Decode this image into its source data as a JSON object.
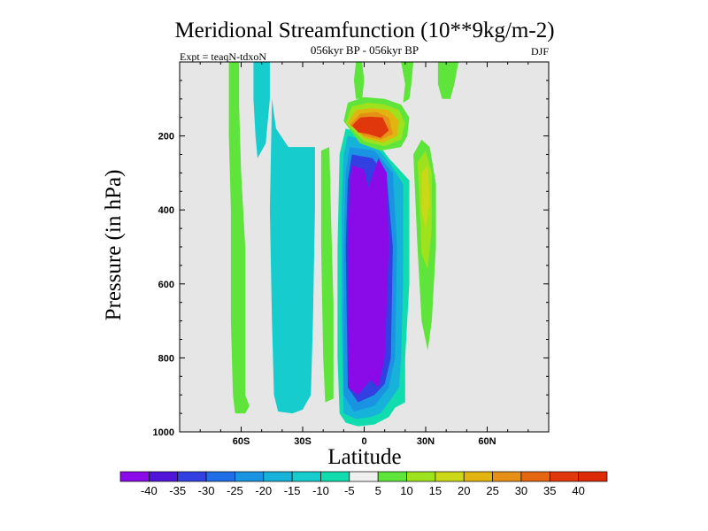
{
  "chart_data": {
    "type": "heatmap",
    "subtype": "filled-contour",
    "title": "Meridional Streamfunction (10**9kg/m-2)",
    "subtitle": "056kyr BP - 056kyr BP",
    "left_note": "Expt = teaqN-tdxoN",
    "right_note": "DJF",
    "xlabel": "Latitude",
    "ylabel": "Pressure (in hPa)",
    "xlim": [
      -90,
      90
    ],
    "ylim": [
      1000,
      0
    ],
    "x_ticks": [
      {
        "value": -60,
        "label": "60S"
      },
      {
        "value": -30,
        "label": "30S"
      },
      {
        "value": 0,
        "label": "0"
      },
      {
        "value": 30,
        "label": "30N"
      },
      {
        "value": 60,
        "label": "60N"
      }
    ],
    "y_ticks": [
      {
        "value": 200,
        "label": "200"
      },
      {
        "value": 400,
        "label": "400"
      },
      {
        "value": 600,
        "label": "600"
      },
      {
        "value": 800,
        "label": "800"
      },
      {
        "value": 1000,
        "label": "1000"
      }
    ],
    "missing_color": "#e6e6e6",
    "colorbar": {
      "labels": [
        "-40",
        "-35",
        "-30",
        "-25",
        "-20",
        "-15",
        "-10",
        "-5",
        "5",
        "10",
        "15",
        "20",
        "25",
        "30",
        "35",
        "40"
      ],
      "colors": [
        "#8a0ae8",
        "#4f14d8",
        "#3240e2",
        "#1f6ee6",
        "#1a94e2",
        "#16b2da",
        "#16cccc",
        "#10dcae",
        "#f0f0f0",
        "#5ee43a",
        "#9ee21e",
        "#cad818",
        "#e2b410",
        "#e69018",
        "#e46610",
        "#e0380c",
        "#dc2a06"
      ]
    },
    "regions": [
      {
        "name": "sh-polar-positive-band",
        "level": "5",
        "color": "#5ee43a",
        "points": [
          [
            -66,
            0
          ],
          [
            -61,
            0
          ],
          [
            -61,
            120
          ],
          [
            -60,
            300
          ],
          [
            -58,
            500
          ],
          [
            -58,
            900
          ],
          [
            -56,
            930
          ],
          [
            -58,
            950
          ],
          [
            -63,
            950
          ],
          [
            -64,
            900
          ],
          [
            -65,
            700
          ],
          [
            -65,
            400
          ],
          [
            -66,
            200
          ]
        ]
      },
      {
        "name": "sh-subpolar-negative-top",
        "level": "-10",
        "color": "#16cccc",
        "points": [
          [
            -54,
            0
          ],
          [
            -46,
            0
          ],
          [
            -46,
            100
          ],
          [
            -48,
            220
          ],
          [
            -52,
            260
          ],
          [
            -53,
            200
          ],
          [
            -54,
            100
          ]
        ]
      },
      {
        "name": "sh-midlat-negative-band",
        "level": "-10",
        "color": "#16cccc",
        "points": [
          [
            -45,
            100
          ],
          [
            -43,
            180
          ],
          [
            -37,
            230
          ],
          [
            -30,
            230
          ],
          [
            -24,
            230
          ],
          [
            -24,
            400
          ],
          [
            -25,
            700
          ],
          [
            -26,
            900
          ],
          [
            -28,
            920
          ],
          [
            -30,
            940
          ],
          [
            -35,
            950
          ],
          [
            -42,
            945
          ],
          [
            -44,
            900
          ],
          [
            -45,
            700
          ],
          [
            -46,
            400
          ]
        ]
      },
      {
        "name": "subtropical-positive-strip",
        "level": "5",
        "color": "#5ee43a",
        "points": [
          [
            -21,
            240
          ],
          [
            -17,
            230
          ],
          [
            -16,
            450
          ],
          [
            -15,
            650
          ],
          [
            -15,
            800
          ],
          [
            -15,
            910
          ],
          [
            -19,
            920
          ],
          [
            -20,
            800
          ],
          [
            -21,
            500
          ]
        ]
      },
      {
        "name": "hadley-outer-negative",
        "level": "-5",
        "color": "#10dcae",
        "points": [
          [
            -9,
            180
          ],
          [
            -3,
            190
          ],
          [
            4,
            200
          ],
          [
            12,
            260
          ],
          [
            22,
            320
          ],
          [
            22,
            600
          ],
          [
            20,
            800
          ],
          [
            20,
            920
          ],
          [
            15,
            935
          ],
          [
            12,
            960
          ],
          [
            5,
            980
          ],
          [
            -3,
            985
          ],
          [
            -9,
            975
          ],
          [
            -12,
            950
          ],
          [
            -13,
            800
          ],
          [
            -13,
            500
          ],
          [
            -12,
            250
          ]
        ]
      },
      {
        "name": "hadley-negative-15",
        "level": "-15",
        "color": "#16b2da",
        "points": [
          [
            -8,
            200
          ],
          [
            4,
            215
          ],
          [
            12,
            270
          ],
          [
            19,
            330
          ],
          [
            19,
            600
          ],
          [
            18,
            800
          ],
          [
            17,
            880
          ],
          [
            12,
            920
          ],
          [
            8,
            950
          ],
          [
            3,
            960
          ],
          [
            -4,
            965
          ],
          [
            -10,
            950
          ],
          [
            -11,
            700
          ],
          [
            -11,
            400
          ],
          [
            -10,
            250
          ]
        ]
      },
      {
        "name": "hadley-negative-20",
        "level": "-20",
        "color": "#1a94e2",
        "points": [
          [
            -7,
            230
          ],
          [
            5,
            240
          ],
          [
            14,
            300
          ],
          [
            16,
            500
          ],
          [
            15,
            800
          ],
          [
            12,
            880
          ],
          [
            5,
            930
          ],
          [
            -5,
            945
          ],
          [
            -10,
            900
          ],
          [
            -10,
            500
          ],
          [
            -9,
            300
          ]
        ]
      },
      {
        "name": "hadley-negative-30",
        "level": "-30",
        "color": "#3240e2",
        "points": [
          [
            -6,
            250
          ],
          [
            4,
            260
          ],
          [
            11,
            310
          ],
          [
            14,
            500
          ],
          [
            13,
            800
          ],
          [
            10,
            870
          ],
          [
            5,
            900
          ],
          [
            -3,
            920
          ],
          [
            -8,
            880
          ],
          [
            -9,
            500
          ],
          [
            -8,
            320
          ]
        ]
      },
      {
        "name": "hadley-core-negative-40",
        "level": "-40",
        "color": "#8a0ae8",
        "points": [
          [
            -6,
            280
          ],
          [
            0,
            290
          ],
          [
            2,
            340
          ],
          [
            7,
            260
          ],
          [
            11,
            300
          ],
          [
            12,
            500
          ],
          [
            10,
            800
          ],
          [
            7,
            880
          ],
          [
            3,
            860
          ],
          [
            -3,
            900
          ],
          [
            -8,
            880
          ],
          [
            -8,
            500
          ],
          [
            -7,
            330
          ]
        ]
      },
      {
        "name": "nh-tropics-upper-positive-5",
        "level": "5",
        "color": "#5ee43a",
        "points": [
          [
            -10,
            160
          ],
          [
            -8,
            110
          ],
          [
            0,
            95
          ],
          [
            10,
            100
          ],
          [
            18,
            115
          ],
          [
            22,
            150
          ],
          [
            21,
            200
          ],
          [
            18,
            230
          ],
          [
            8,
            240
          ],
          [
            -2,
            220
          ]
        ]
      },
      {
        "name": "nh-tropics-upper-positive-10",
        "level": "10",
        "color": "#9ee21e",
        "points": [
          [
            -9,
            165
          ],
          [
            -6,
            120
          ],
          [
            2,
            110
          ],
          [
            10,
            115
          ],
          [
            17,
            130
          ],
          [
            20,
            165
          ],
          [
            18,
            210
          ],
          [
            10,
            228
          ],
          [
            0,
            215
          ]
        ]
      },
      {
        "name": "nh-tropics-upper-positive-20",
        "level": "20",
        "color": "#e2b410",
        "points": [
          [
            -8,
            165
          ],
          [
            -4,
            130
          ],
          [
            4,
            125
          ],
          [
            12,
            130
          ],
          [
            17,
            160
          ],
          [
            16,
            200
          ],
          [
            9,
            218
          ],
          [
            0,
            205
          ]
        ]
      },
      {
        "name": "nh-tropics-upper-positive-30",
        "level": "30",
        "color": "#e69018",
        "points": [
          [
            -7,
            170
          ],
          [
            -2,
            140
          ],
          [
            6,
            135
          ],
          [
            12,
            150
          ],
          [
            14,
            195
          ],
          [
            8,
            210
          ],
          [
            0,
            200
          ]
        ]
      },
      {
        "name": "nh-tropics-upper-positive-40",
        "level": "40",
        "color": "#e0380c",
        "points": [
          [
            -6,
            172
          ],
          [
            -2,
            150
          ],
          [
            3,
            148
          ],
          [
            9,
            150
          ],
          [
            12,
            185
          ],
          [
            8,
            205
          ],
          [
            2,
            195
          ],
          [
            -3,
            190
          ]
        ]
      },
      {
        "name": "nh-thin-positive-tail",
        "level": "5",
        "color": "#5ee43a",
        "points": [
          [
            -4,
            0
          ],
          [
            -1,
            0
          ],
          [
            0,
            50
          ],
          [
            -1,
            100
          ],
          [
            -4,
            100
          ],
          [
            -5,
            50
          ]
        ]
      },
      {
        "name": "nh-upper-positive-thin-2",
        "level": "5",
        "color": "#5ee43a",
        "points": [
          [
            18,
            0
          ],
          [
            24,
            0
          ],
          [
            23,
            60
          ],
          [
            22,
            100
          ],
          [
            19,
            110
          ],
          [
            20,
            60
          ]
        ]
      },
      {
        "name": "nh-ferrel-positive-5",
        "level": "5",
        "color": "#5ee43a",
        "points": [
          [
            24,
            250
          ],
          [
            28,
            210
          ],
          [
            32,
            230
          ],
          [
            35,
            330
          ],
          [
            35,
            500
          ],
          [
            33,
            700
          ],
          [
            31,
            780
          ],
          [
            28,
            700
          ],
          [
            26,
            500
          ]
        ]
      },
      {
        "name": "nh-ferrel-positive-10",
        "level": "10",
        "color": "#9ee21e",
        "points": [
          [
            26,
            270
          ],
          [
            30,
            240
          ],
          [
            33,
            300
          ],
          [
            33,
            450
          ],
          [
            31,
            560
          ],
          [
            28,
            520
          ],
          [
            27,
            380
          ]
        ]
      },
      {
        "name": "nh-ferrel-positive-15",
        "level": "15",
        "color": "#cad818",
        "points": [
          [
            28,
            300
          ],
          [
            31,
            280
          ],
          [
            32,
            380
          ],
          [
            30,
            450
          ],
          [
            28,
            400
          ]
        ]
      },
      {
        "name": "nh-polar-positive",
        "level": "5",
        "color": "#5ee43a",
        "points": [
          [
            36,
            0
          ],
          [
            46,
            0
          ],
          [
            44,
            60
          ],
          [
            42,
            100
          ],
          [
            38,
            100
          ],
          [
            36,
            60
          ]
        ]
      }
    ]
  }
}
